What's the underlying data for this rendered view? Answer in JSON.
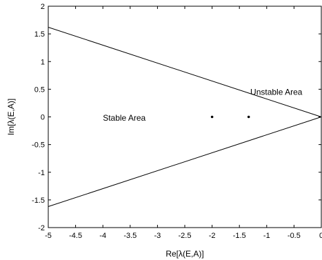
{
  "chart_data": {
    "type": "line",
    "title": "",
    "xlabel": "Re[λ(E,A)]",
    "ylabel": "Im[λ(E,A)]",
    "xlim": [
      -5,
      0
    ],
    "ylim": [
      -2,
      2
    ],
    "xticks": [
      -5,
      -4.5,
      -4,
      -3.5,
      -3,
      -2.5,
      -2,
      -1.5,
      -1,
      -0.5,
      0
    ],
    "xtick_labels": [
      "-5",
      "-4.5",
      "-4",
      "-3.5",
      "-3",
      "-2.5",
      "-2",
      "-1.5",
      "-1",
      "-0.5",
      "0"
    ],
    "yticks": [
      -2,
      -1.5,
      -1,
      -0.5,
      0,
      0.5,
      1,
      1.5,
      2
    ],
    "ytick_labels": [
      "-2",
      "-1.5",
      "-1",
      "-0.5",
      "0",
      "0.5",
      "1",
      "1.5",
      "2"
    ],
    "grid": false,
    "series": [
      {
        "kind": "line",
        "color": "#000000",
        "x": [
          -5,
          0
        ],
        "y": [
          1.62,
          0
        ]
      },
      {
        "kind": "line",
        "color": "#000000",
        "x": [
          -5,
          0
        ],
        "y": [
          -1.62,
          0
        ]
      },
      {
        "kind": "scatter",
        "color": "#000000",
        "x": [
          -2,
          -1.33
        ],
        "y": [
          0,
          0
        ]
      }
    ],
    "annotations": [
      {
        "text": "Unstable Area",
        "x": -1.3,
        "y": 0.4
      },
      {
        "text": "Stable Area",
        "x": -4.0,
        "y": -0.07
      }
    ]
  }
}
